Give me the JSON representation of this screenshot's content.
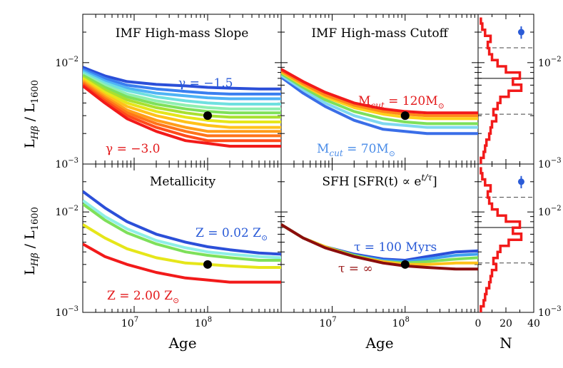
{
  "figure": {
    "y_axis_label_top": "L",
    "y_axis_label_sub1": "Hβ",
    "y_axis_label_sep": " / L",
    "y_axis_label_sub2": "1600",
    "x_axis_label": "Age",
    "hist_x_label": "N"
  },
  "chart_data": [
    {
      "panel": "imf-slope",
      "type": "line",
      "title": "IMF High-mass Slope",
      "xlabel": "",
      "ylabel": "L_Hβ / L_1600",
      "xscale": "log",
      "yscale": "log",
      "xlim": [
        2000000,
        1000000000
      ],
      "ylim": [
        0.001,
        0.03
      ],
      "x": [
        2000000,
        4000000,
        8000000,
        20000000,
        50000000,
        100000000,
        200000000,
        500000000,
        1000000000
      ],
      "annotations": [
        {
          "text": "γ = −1.5",
          "color": "#2a5bd7"
        },
        {
          "text": "γ = −3.0",
          "color": "#e31a1c"
        }
      ],
      "fiducial_point": {
        "x": 100000000,
        "y": 0.003
      },
      "series": [
        {
          "name": "γ = −1.5",
          "color": "#2b4fd8",
          "values": [
            0.009,
            0.0074,
            0.0065,
            0.0061,
            0.0059,
            0.0057,
            0.0056,
            0.0055,
            0.0055
          ]
        },
        {
          "name": "",
          "color": "#3a7ff0",
          "values": [
            0.0086,
            0.007,
            0.006,
            0.0055,
            0.0052,
            0.005,
            0.0049,
            0.0049,
            0.0049
          ]
        },
        {
          "name": "",
          "color": "#4fb3f5",
          "values": [
            0.0083,
            0.0066,
            0.0056,
            0.005,
            0.0047,
            0.0045,
            0.0044,
            0.0044,
            0.0044
          ]
        },
        {
          "name": "",
          "color": "#6fe0e0",
          "values": [
            0.008,
            0.0063,
            0.0053,
            0.0046,
            0.0042,
            0.004,
            0.0039,
            0.0039,
            0.0039
          ]
        },
        {
          "name": "",
          "color": "#8fefb0",
          "values": [
            0.0077,
            0.006,
            0.0049,
            0.0042,
            0.0038,
            0.0036,
            0.0035,
            0.0035,
            0.0035
          ]
        },
        {
          "name": "",
          "color": "#7ee05a",
          "values": [
            0.0075,
            0.0057,
            0.0046,
            0.0039,
            0.0035,
            0.0033,
            0.0032,
            0.0032,
            0.0032
          ]
        },
        {
          "name": "",
          "color": "#a8e030",
          "values": [
            0.0072,
            0.0054,
            0.0043,
            0.0036,
            0.0032,
            0.003,
            0.0029,
            0.0029,
            0.0029
          ]
        },
        {
          "name": "",
          "color": "#e6e61a",
          "values": [
            0.007,
            0.0051,
            0.004,
            0.0033,
            0.0029,
            0.0027,
            0.0026,
            0.0026,
            0.0026
          ]
        },
        {
          "name": "",
          "color": "#ffc21a",
          "values": [
            0.0067,
            0.0048,
            0.0037,
            0.003,
            0.0026,
            0.0024,
            0.0023,
            0.0023,
            0.0023
          ]
        },
        {
          "name": "",
          "color": "#ff9d1a",
          "values": [
            0.0065,
            0.0046,
            0.0034,
            0.0027,
            0.0023,
            0.0021,
            0.0021,
            0.0021,
            0.0021
          ]
        },
        {
          "name": "",
          "color": "#ff741a",
          "values": [
            0.0063,
            0.0044,
            0.0032,
            0.0025,
            0.0021,
            0.0019,
            0.0019,
            0.0019,
            0.0019
          ]
        },
        {
          "name": "",
          "color": "#ff4b1a",
          "values": [
            0.0061,
            0.0042,
            0.003,
            0.0023,
            0.0019,
            0.0017,
            0.0017,
            0.0017,
            0.0017
          ]
        },
        {
          "name": "γ = −3.0",
          "color": "#f21a1a",
          "values": [
            0.0059,
            0.004,
            0.0028,
            0.0021,
            0.0017,
            0.0016,
            0.0015,
            0.0015,
            0.0015
          ]
        }
      ]
    },
    {
      "panel": "imf-cutoff",
      "type": "line",
      "title": "IMF High-mass Cutoff",
      "xscale": "log",
      "yscale": "log",
      "xlim": [
        2000000,
        1000000000
      ],
      "ylim": [
        0.001,
        0.03
      ],
      "x": [
        2000000,
        4000000,
        8000000,
        20000000,
        50000000,
        100000000,
        200000000,
        500000000,
        1000000000
      ],
      "annotations": [
        {
          "text": "M",
          "sub": "cut",
          "rest": " = 120M",
          "suffix": "⊙",
          "color": "#e31a1c"
        },
        {
          "text": "M",
          "sub": "cut",
          "rest": " = 70M",
          "suffix": "⊙",
          "color": "#4a8ce8"
        }
      ],
      "fiducial_point": {
        "x": 100000000,
        "y": 0.003
      },
      "series": [
        {
          "name": "M_cut = 70M⊙",
          "color": "#3a6ee8",
          "values": [
            0.0072,
            0.005,
            0.0037,
            0.0027,
            0.0022,
            0.0021,
            0.002,
            0.002,
            0.002
          ]
        },
        {
          "name": "",
          "color": "#7fd8f0",
          "values": [
            0.0075,
            0.0054,
            0.004,
            0.003,
            0.0025,
            0.0024,
            0.0023,
            0.0023,
            0.0023
          ]
        },
        {
          "name": "",
          "color": "#7ee05a",
          "values": [
            0.0078,
            0.0057,
            0.0043,
            0.0033,
            0.0028,
            0.0026,
            0.0025,
            0.0025,
            0.0025
          ]
        },
        {
          "name": "",
          "color": "#ffd01a",
          "values": [
            0.0081,
            0.006,
            0.0046,
            0.0036,
            0.0031,
            0.0029,
            0.0028,
            0.0028,
            0.0028
          ]
        },
        {
          "name": "",
          "color": "#ff8a1a",
          "values": [
            0.0083,
            0.0062,
            0.0048,
            0.0038,
            0.0033,
            0.0031,
            0.003,
            0.003,
            0.003
          ]
        },
        {
          "name": "M_cut = 120M⊙",
          "color": "#f21a1a",
          "values": [
            0.0086,
            0.0065,
            0.0051,
            0.004,
            0.0035,
            0.0033,
            0.0032,
            0.0032,
            0.0032
          ]
        }
      ]
    },
    {
      "panel": "metallicity",
      "type": "line",
      "title": "Metallicity",
      "xscale": "log",
      "yscale": "log",
      "xlim": [
        2000000,
        1000000000
      ],
      "ylim": [
        0.001,
        0.03
      ],
      "x": [
        2000000,
        4000000,
        8000000,
        20000000,
        50000000,
        100000000,
        200000000,
        500000000,
        1000000000
      ],
      "annotations": [
        {
          "text": "Z = 0.02 Z",
          "suffix": "⊙",
          "color": "#2a5bd7"
        },
        {
          "text": "Z = 2.00 Z",
          "suffix": "⊙",
          "color": "#e31a1c"
        }
      ],
      "fiducial_point": {
        "x": 100000000,
        "y": 0.003
      },
      "series": [
        {
          "name": "Z = 0.02 Z⊙",
          "color": "#2b4fd8",
          "values": [
            0.016,
            0.011,
            0.008,
            0.006,
            0.005,
            0.0045,
            0.0042,
            0.0039,
            0.0038
          ]
        },
        {
          "name": "",
          "color": "#8fefe6",
          "values": [
            0.013,
            0.009,
            0.0068,
            0.0052,
            0.0044,
            0.004,
            0.0038,
            0.0036,
            0.0035
          ]
        },
        {
          "name": "",
          "color": "#7ee05a",
          "values": [
            0.012,
            0.0083,
            0.0062,
            0.0048,
            0.004,
            0.0037,
            0.0035,
            0.0033,
            0.0033
          ]
        },
        {
          "name": "",
          "color": "#e6e61a",
          "values": [
            0.0075,
            0.0055,
            0.0043,
            0.0035,
            0.0031,
            0.003,
            0.0029,
            0.0028,
            0.0028
          ]
        },
        {
          "name": "Z = 2.00 Z⊙",
          "color": "#f21a1a",
          "values": [
            0.0048,
            0.0036,
            0.003,
            0.0025,
            0.0022,
            0.0021,
            0.002,
            0.002,
            0.002
          ]
        }
      ]
    },
    {
      "panel": "sfh",
      "type": "line",
      "title": "SFH [SFR(t) ∝ e",
      "title_sup": "t/τ",
      "title_end": "]",
      "xscale": "log",
      "yscale": "log",
      "xlim": [
        2000000,
        1000000000
      ],
      "ylim": [
        0.001,
        0.03
      ],
      "x": [
        2000000,
        4000000,
        8000000,
        20000000,
        50000000,
        100000000,
        200000000,
        500000000,
        1000000000
      ],
      "annotations": [
        {
          "text": "τ = 100 Myrs",
          "color": "#2a5bd7"
        },
        {
          "text": "τ = ∞",
          "color": "#9b1c1c"
        }
      ],
      "fiducial_point": {
        "x": 100000000,
        "y": 0.003
      },
      "series": [
        {
          "name": "τ = 100 Myrs",
          "color": "#2b4fd8",
          "values": [
            0.0075,
            0.0055,
            0.0045,
            0.0038,
            0.0034,
            0.0033,
            0.0036,
            0.004,
            0.0041
          ]
        },
        {
          "name": "",
          "color": "#3fa0f0",
          "values": [
            0.0075,
            0.0055,
            0.0045,
            0.0037,
            0.0033,
            0.0032,
            0.0034,
            0.0037,
            0.0038
          ]
        },
        {
          "name": "",
          "color": "#7ee05a",
          "values": [
            0.0075,
            0.0055,
            0.0045,
            0.0037,
            0.0032,
            0.0031,
            0.0032,
            0.0034,
            0.0035
          ]
        },
        {
          "name": "",
          "color": "#ffc21a",
          "values": [
            0.0075,
            0.0055,
            0.0045,
            0.0036,
            0.0032,
            0.003,
            0.003,
            0.0031,
            0.0031
          ]
        },
        {
          "name": "τ = ∞",
          "color": "#8b0d0d",
          "values": [
            0.0075,
            0.0055,
            0.0044,
            0.0036,
            0.0031,
            0.0029,
            0.0028,
            0.0027,
            0.0027
          ]
        }
      ]
    },
    {
      "panel": "histogram-top",
      "type": "histogram",
      "orientation": "horizontal",
      "xlim": [
        0,
        40
      ],
      "ylim": [
        0.001,
        0.03
      ],
      "xlabel": "",
      "ylabel": "L_Hβ / L_1600",
      "bin_edges": [
        0.001,
        0.00115,
        0.00132,
        0.00152,
        0.00174,
        0.002,
        0.0023,
        0.00264,
        0.00303,
        0.00348,
        0.004,
        0.0046,
        0.00528,
        0.00607,
        0.00697,
        0.008,
        0.0092,
        0.0106,
        0.0121,
        0.0139,
        0.016,
        0.0184,
        0.0211,
        0.0243,
        0.0279
      ],
      "counts": [
        2,
        4,
        5,
        6,
        8,
        9,
        10,
        13,
        11,
        14,
        16,
        22,
        31,
        25,
        30,
        20,
        14,
        10,
        8,
        7,
        9,
        5,
        3,
        2
      ],
      "median": 0.007,
      "percentiles": [
        0.0031,
        0.014
      ],
      "error_point": {
        "x": 31,
        "y": 0.02,
        "yerr": [
          0.0028,
          0.0028
        ],
        "color": "#2a5bd7"
      }
    },
    {
      "panel": "histogram-bottom",
      "type": "histogram",
      "orientation": "horizontal",
      "xlim": [
        0,
        40
      ],
      "ylim": [
        0.001,
        0.03
      ],
      "xlabel": "N",
      "ylabel": "L_Hβ / L_1600",
      "xticks": [
        "0",
        "20",
        "40"
      ],
      "bin_edges": [
        0.001,
        0.00115,
        0.00132,
        0.00152,
        0.00174,
        0.002,
        0.0023,
        0.00264,
        0.00303,
        0.00348,
        0.004,
        0.0046,
        0.00528,
        0.00607,
        0.00697,
        0.008,
        0.0092,
        0.0106,
        0.0121,
        0.0139,
        0.016,
        0.0184,
        0.0211,
        0.0243,
        0.0279
      ],
      "counts": [
        2,
        4,
        5,
        6,
        8,
        9,
        10,
        13,
        11,
        14,
        16,
        22,
        31,
        25,
        30,
        20,
        14,
        10,
        8,
        7,
        9,
        5,
        3,
        2
      ],
      "median": 0.007,
      "percentiles": [
        0.0031,
        0.014
      ],
      "error_point": {
        "x": 31,
        "y": 0.02,
        "yerr": [
          0.0028,
          0.0028
        ],
        "color": "#2a5bd7"
      }
    }
  ],
  "ticks": {
    "y_major": [
      {
        "value": 0.001,
        "base": "10",
        "exp": "−3"
      },
      {
        "value": 0.01,
        "base": "10",
        "exp": "−2"
      }
    ],
    "x_major": [
      {
        "value": 10000000,
        "base": "10",
        "exp": "7"
      },
      {
        "value": 100000000,
        "base": "10",
        "exp": "8"
      }
    ]
  }
}
